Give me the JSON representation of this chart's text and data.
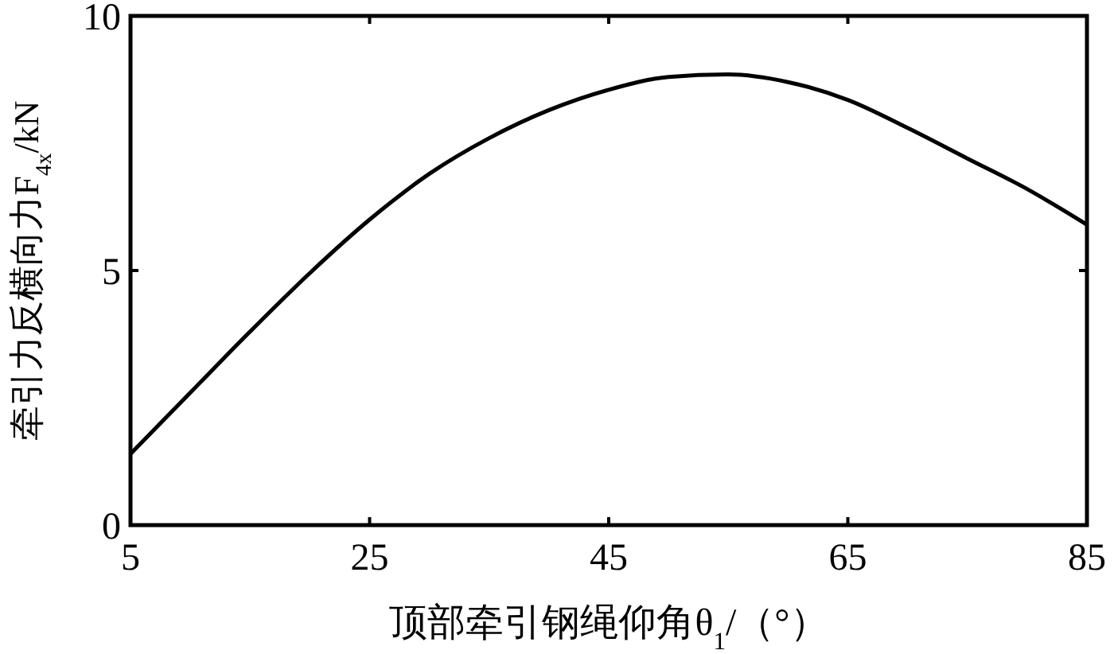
{
  "chart_data": {
    "type": "line",
    "xlabel": "顶部牵引钢绳仰角θ$_{1}$/（°）",
    "ylabel": "牵引力反横向力F$_{4x}$/kN",
    "x": [
      5,
      10,
      15,
      20,
      25,
      30,
      35,
      40,
      45,
      50,
      55,
      60,
      65,
      70,
      75,
      80,
      85
    ],
    "series": [
      {
        "color": "#000000",
        "values": [
          1.4,
          2.6,
          3.8,
          4.95,
          6.0,
          6.9,
          7.6,
          8.15,
          8.55,
          8.8,
          8.85,
          8.7,
          8.35,
          7.8,
          7.2,
          6.6,
          5.9
        ]
      }
    ],
    "xlim": [
      5,
      85
    ],
    "xticks": [
      5,
      25,
      45,
      65,
      85
    ],
    "ylim": [
      0,
      10
    ],
    "yticks": [
      0,
      5,
      10
    ],
    "grid": false,
    "marker": "none",
    "line_style": "solid"
  }
}
